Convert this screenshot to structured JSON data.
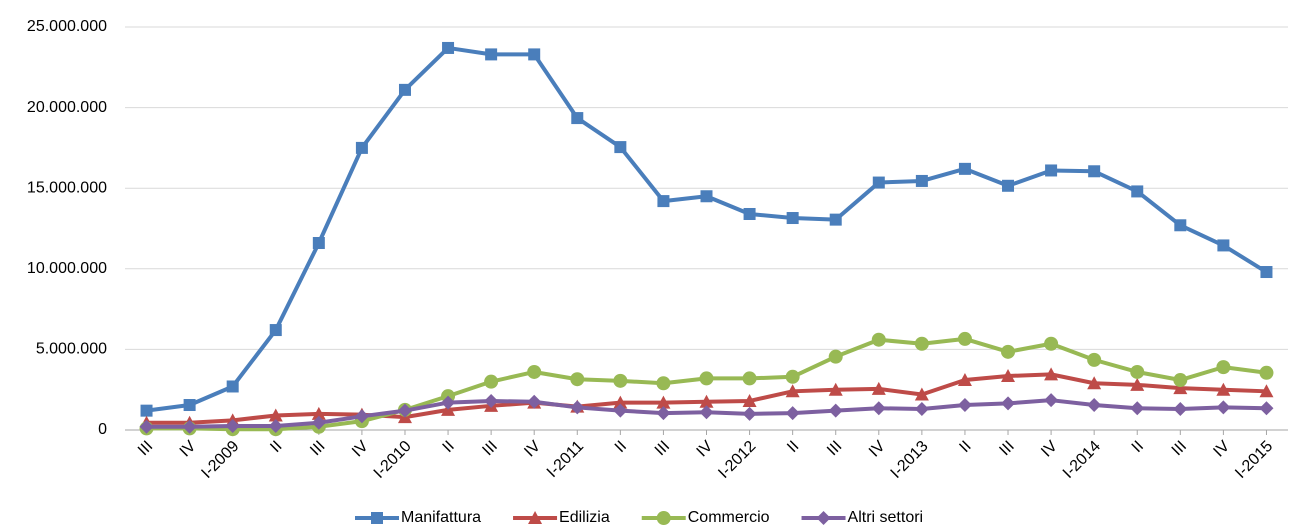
{
  "chart_data": {
    "type": "line",
    "categories": [
      "III",
      "IV",
      "I-2009",
      "II",
      "III",
      "IV",
      "I-2010",
      "II",
      "III",
      "IV",
      "I-2011",
      "II",
      "III",
      "IV",
      "I-2012",
      "II",
      "III",
      "IV",
      "I-2013",
      "II",
      "III",
      "IV",
      "I-2014",
      "II",
      "III",
      "IV",
      "I-2015"
    ],
    "series": [
      {
        "name": "Manifattura",
        "color": "#4a7ebb",
        "marker": "square",
        "values": [
          1200000,
          1550000,
          2700000,
          6200000,
          11600000,
          17500000,
          21100000,
          23700000,
          23300000,
          23300000,
          19350000,
          17550000,
          14200000,
          14500000,
          13400000,
          13150000,
          13050000,
          15350000,
          15450000,
          16200000,
          15150000,
          16100000,
          16050000,
          14800000,
          12700000,
          11450000,
          9800000
        ]
      },
      {
        "name": "Edilizia",
        "color": "#be4b48",
        "marker": "triangle",
        "values": [
          450000,
          450000,
          600000,
          900000,
          1000000,
          950000,
          800000,
          1250000,
          1500000,
          1700000,
          1450000,
          1700000,
          1700000,
          1750000,
          1800000,
          2400000,
          2500000,
          2550000,
          2200000,
          3100000,
          3350000,
          3450000,
          2900000,
          2800000,
          2600000,
          2500000,
          2400000
        ]
      },
      {
        "name": "Commercio",
        "color": "#98b954",
        "marker": "circle",
        "values": [
          100000,
          100000,
          50000,
          50000,
          200000,
          550000,
          1250000,
          2100000,
          3000000,
          3600000,
          3150000,
          3050000,
          2900000,
          3200000,
          3200000,
          3300000,
          4550000,
          5600000,
          5350000,
          5650000,
          4850000,
          5350000,
          4350000,
          3600000,
          3100000,
          3900000,
          3550000
        ]
      },
      {
        "name": "Altri settori",
        "color": "#7d60a0",
        "marker": "diamond",
        "values": [
          200000,
          200000,
          250000,
          250000,
          450000,
          850000,
          1200000,
          1700000,
          1800000,
          1750000,
          1400000,
          1200000,
          1050000,
          1100000,
          1000000,
          1050000,
          1200000,
          1350000,
          1300000,
          1550000,
          1650000,
          1850000,
          1550000,
          1350000,
          1300000,
          1400000,
          1350000
        ]
      }
    ],
    "ylim": [
      0,
      25000000
    ],
    "yticks": [
      {
        "value": 0,
        "label": "0"
      },
      {
        "value": 5000000,
        "label": "5.000.000"
      },
      {
        "value": 10000000,
        "label": "10.000.000"
      },
      {
        "value": 15000000,
        "label": "15.000.000"
      },
      {
        "value": 20000000,
        "label": "20.000.000"
      },
      {
        "value": 25000000,
        "label": "25.000.000"
      }
    ],
    "grid": true,
    "legend": "bottom"
  }
}
